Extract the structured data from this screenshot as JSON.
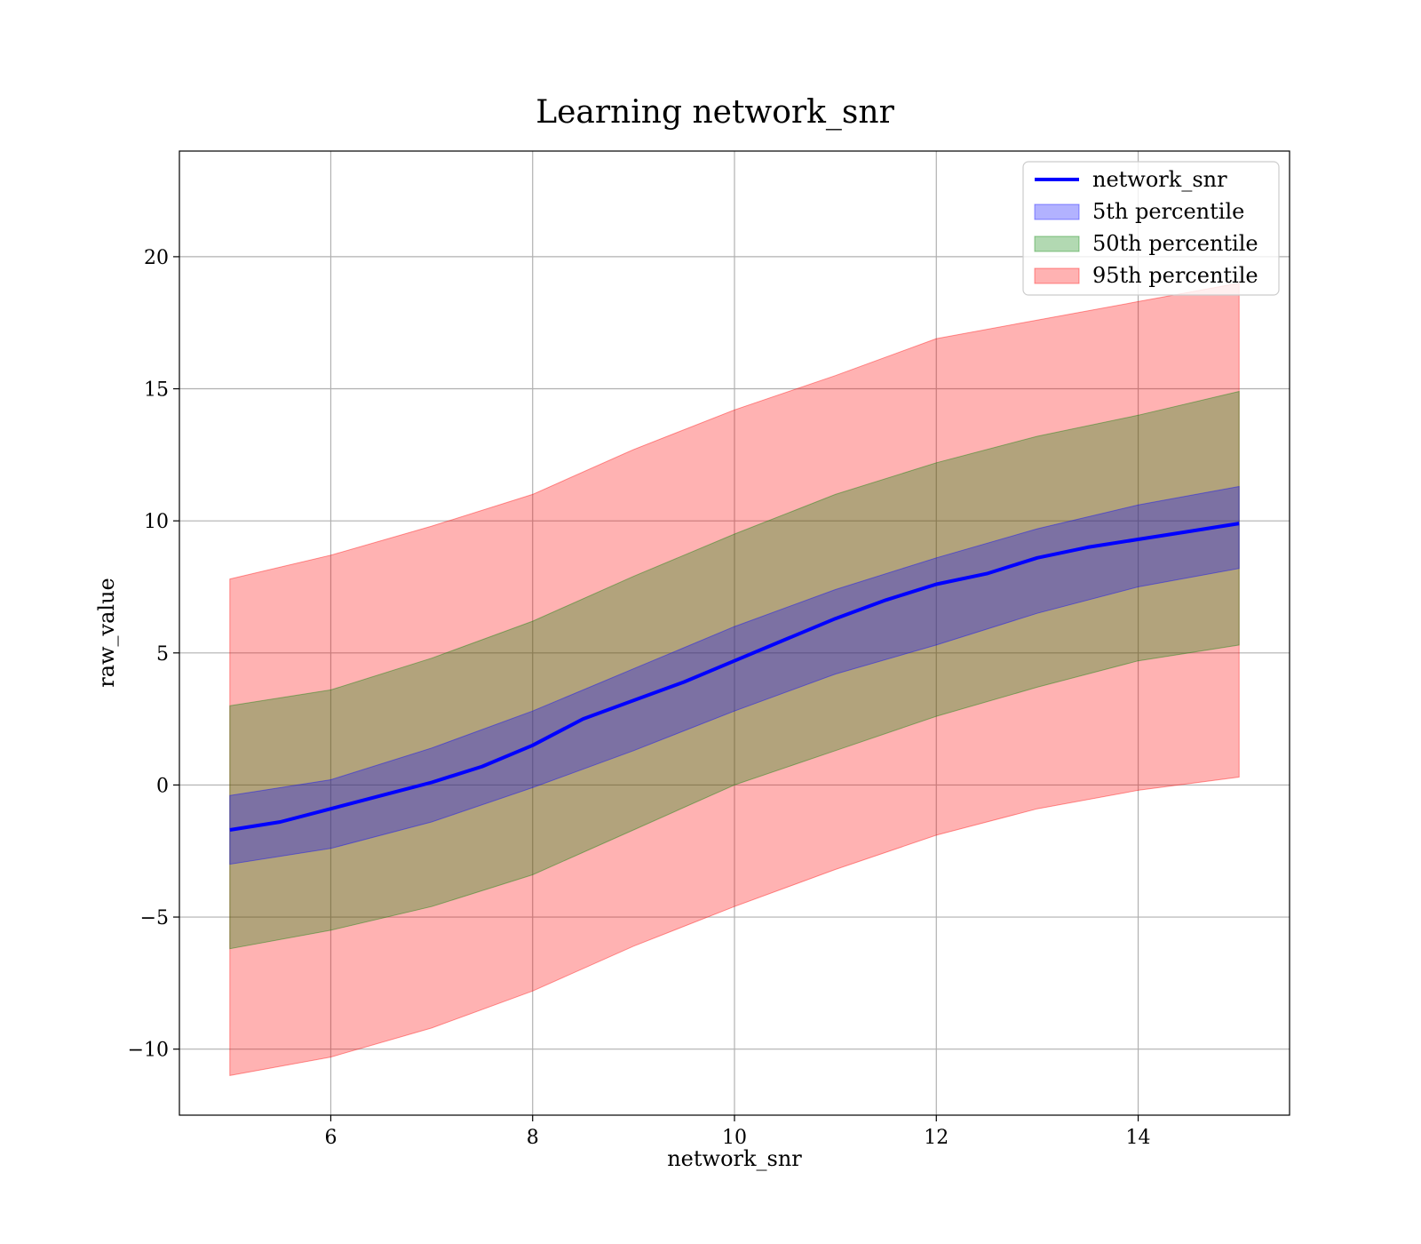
{
  "chart_data": {
    "type": "area",
    "title": "Learning network_snr",
    "xlabel": "network_snr",
    "ylabel": "raw_value",
    "xlim": [
      4.5,
      15.5
    ],
    "ylim": [
      -12.5,
      24
    ],
    "x_ticks": [
      6,
      8,
      10,
      12,
      14
    ],
    "y_ticks": [
      -10,
      -5,
      0,
      5,
      10,
      15,
      20
    ],
    "y_tick_labels": [
      "−10",
      "−5",
      "0",
      "5",
      "10",
      "15",
      "20"
    ],
    "grid": true,
    "legend_position": "top-right",
    "series": [
      {
        "name": "network_snr",
        "kind": "line",
        "color": "#0000ff",
        "x": [
          5,
          5.5,
          6,
          6.5,
          7,
          7.5,
          8,
          8.5,
          9,
          9.5,
          10,
          10.5,
          11,
          11.5,
          12,
          12.5,
          13,
          13.5,
          14,
          14.5,
          15
        ],
        "y": [
          -1.7,
          -1.4,
          -0.9,
          -0.4,
          0.1,
          0.7,
          1.5,
          2.5,
          3.2,
          3.9,
          4.7,
          5.5,
          6.3,
          7.0,
          7.6,
          8.0,
          8.6,
          9.0,
          9.3,
          9.6,
          9.9
        ]
      },
      {
        "name": "5th percentile",
        "kind": "band",
        "color": "#0000ff",
        "x": [
          5,
          6,
          7,
          8,
          9,
          10,
          11,
          12,
          13,
          14,
          15
        ],
        "lower": [
          -3.0,
          -2.4,
          -1.4,
          -0.1,
          1.3,
          2.8,
          4.2,
          5.3,
          6.5,
          7.5,
          8.2
        ],
        "upper": [
          -0.4,
          0.2,
          1.4,
          2.8,
          4.4,
          6.0,
          7.4,
          8.6,
          9.7,
          10.6,
          11.3
        ]
      },
      {
        "name": "50th percentile",
        "kind": "band",
        "color": "#008000",
        "x": [
          5,
          6,
          7,
          8,
          9,
          10,
          11,
          12,
          13,
          14,
          15
        ],
        "lower": [
          -6.2,
          -5.5,
          -4.6,
          -3.4,
          -1.7,
          0.0,
          1.3,
          2.6,
          3.7,
          4.7,
          5.3
        ],
        "upper": [
          3.0,
          3.6,
          4.8,
          6.2,
          7.9,
          9.5,
          11.0,
          12.2,
          13.2,
          14.0,
          14.9
        ]
      },
      {
        "name": "95th percentile",
        "kind": "band",
        "color": "#ff0000",
        "x": [
          5,
          6,
          7,
          8,
          9,
          10,
          11,
          12,
          13,
          14,
          15
        ],
        "lower": [
          -11.0,
          -10.3,
          -9.2,
          -7.8,
          -6.1,
          -4.6,
          -3.2,
          -1.9,
          -0.9,
          -0.2,
          0.3
        ],
        "upper": [
          7.8,
          8.7,
          9.8,
          11.0,
          12.7,
          14.2,
          15.5,
          16.9,
          17.6,
          18.3,
          19.0
        ]
      }
    ]
  }
}
